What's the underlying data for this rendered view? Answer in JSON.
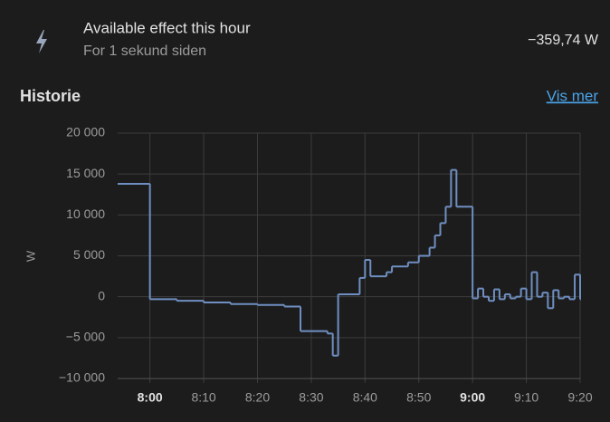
{
  "header": {
    "title": "Available effect this hour",
    "subtitle": "For 1 sekund siden",
    "state": "−359,74 W"
  },
  "history": {
    "title": "Historie",
    "link": "Vis mer"
  },
  "chart_data": {
    "type": "step",
    "ylabel": "W",
    "color": "#6f8fc2",
    "grid": true,
    "x": [
      "7:54",
      "8:00",
      "8:05",
      "8:10",
      "8:15",
      "8:20",
      "8:25",
      "8:28",
      "8:33",
      "8:34",
      "8:35",
      "8:39",
      "8:40",
      "8:41",
      "8:44",
      "8:45",
      "8:48",
      "8:50",
      "8:52",
      "8:53",
      "8:54",
      "8:55",
      "8:56",
      "8:57",
      "9:00",
      "9:01",
      "9:02",
      "9:03",
      "9:04",
      "9:05",
      "9:06",
      "9:07",
      "9:08",
      "9:09",
      "9:10",
      "9:11",
      "9:12",
      "9:13",
      "9:14",
      "9:15",
      "9:16",
      "9:17",
      "9:18",
      "9:19",
      "9:20"
    ],
    "values": [
      13800,
      -300,
      -500,
      -700,
      -900,
      -1000,
      -1200,
      -4200,
      -4500,
      -7200,
      300,
      2300,
      4500,
      2500,
      3000,
      3700,
      4200,
      5000,
      6000,
      7500,
      9000,
      11000,
      15500,
      11000,
      -200,
      1000,
      0,
      -500,
      900,
      -300,
      300,
      -200,
      0,
      1000,
      -300,
      3000,
      0,
      500,
      -1400,
      800,
      -200,
      0,
      -300,
      2700,
      -300
    ],
    "xlim": [
      "7:54",
      "9:20"
    ],
    "xticks": [
      "8:00",
      "8:10",
      "8:20",
      "8:30",
      "8:40",
      "8:50",
      "9:00",
      "9:10",
      "9:20"
    ],
    "ylim": [
      -10000,
      20000
    ],
    "yticks": [
      {
        "value": -10000,
        "label": "−10 000"
      },
      {
        "value": -5000,
        "label": "−5 000"
      },
      0,
      {
        "value": 5000,
        "label": "5 000"
      },
      {
        "value": 10000,
        "label": "10 000"
      },
      {
        "value": 15000,
        "label": "15 000"
      },
      {
        "value": 20000,
        "label": "20 000"
      }
    ]
  }
}
